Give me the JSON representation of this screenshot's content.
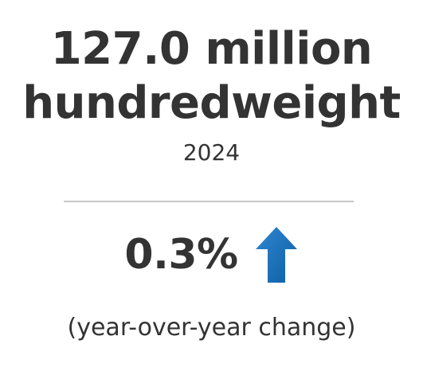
{
  "stat": {
    "headline_line1": "127.0 million",
    "headline_line2": "hundredweight",
    "year": "2024"
  },
  "change": {
    "value": "0.3%",
    "direction": "up",
    "direction_icon": "arrow-up-icon",
    "caption": "(year-over-year change)"
  },
  "colors": {
    "text": "#333333",
    "divider": "#c8c8c8",
    "arrow_light": "#2f86cf",
    "arrow_dark": "#0d5fa6"
  }
}
